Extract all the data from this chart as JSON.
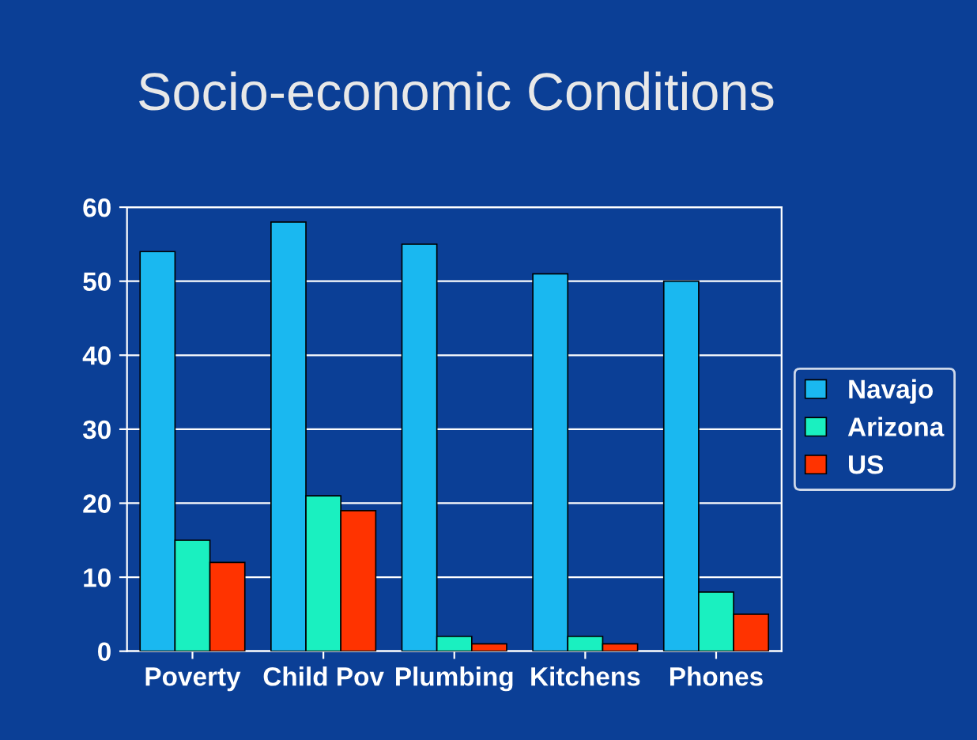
{
  "chart_data": {
    "type": "bar",
    "title": "Socio-economic Conditions",
    "categories": [
      "Poverty",
      "Child Pov",
      "Plumbing",
      "Kitchens",
      "Phones"
    ],
    "series": [
      {
        "name": "Navajo",
        "color": "#1ab8f0",
        "values": [
          54,
          58,
          55,
          51,
          50
        ]
      },
      {
        "name": "Arizona",
        "color": "#1af0c0",
        "values": [
          15,
          21,
          2,
          2,
          8
        ]
      },
      {
        "name": "US",
        "color": "#ff3300",
        "values": [
          12,
          19,
          1,
          1,
          5
        ]
      }
    ],
    "ylim": [
      0,
      60
    ],
    "yticks": [
      0,
      10,
      20,
      30,
      40,
      50,
      60
    ],
    "grid": "y",
    "legend": "right"
  }
}
